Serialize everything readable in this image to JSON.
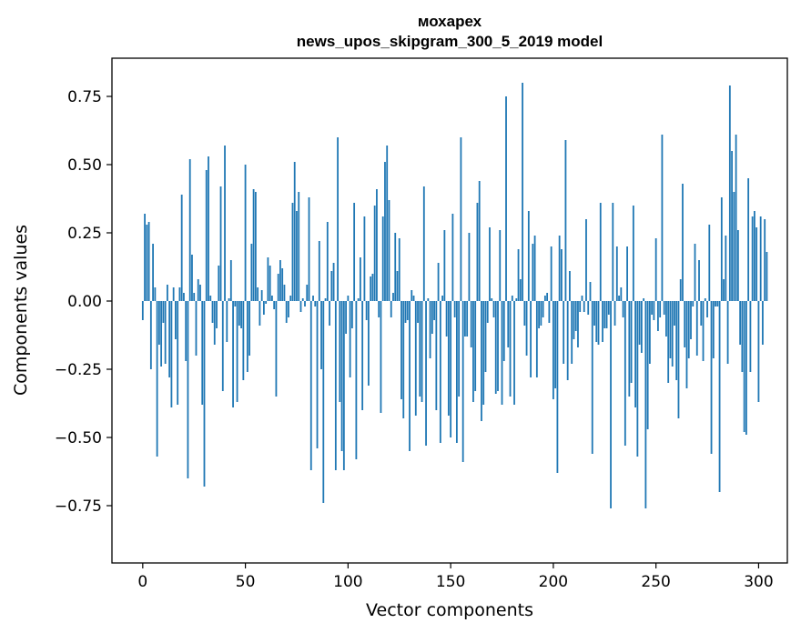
{
  "chart_data": {
    "type": "bar",
    "title_line1": "мохарех",
    "title_line2": "news_upos_skipgram_300_5_2019 model",
    "xlabel": "Vector components",
    "ylabel": "Components values",
    "xlim": [
      -15,
      314
    ],
    "ylim": [
      -0.96,
      0.89
    ],
    "xticks": [
      0,
      50,
      100,
      150,
      200,
      250,
      300
    ],
    "xtick_labels": [
      "0",
      "50",
      "100",
      "150",
      "200",
      "250",
      "300"
    ],
    "yticks": [
      -0.75,
      -0.5,
      -0.25,
      0.0,
      0.25,
      0.5,
      0.75
    ],
    "ytick_labels": [
      "−0.75",
      "−0.50",
      "−0.25",
      "0.00",
      "0.25",
      "0.50",
      "0.75"
    ],
    "bar_color": "#1f77b4",
    "x_start": 0,
    "values": [
      -0.07,
      0.32,
      0.28,
      0.29,
      -0.25,
      0.21,
      0.05,
      -0.57,
      -0.16,
      -0.24,
      -0.08,
      -0.23,
      0.06,
      -0.28,
      -0.39,
      0.05,
      -0.14,
      -0.38,
      0.05,
      0.39,
      0.03,
      -0.22,
      -0.65,
      0.52,
      0.17,
      0.03,
      -0.2,
      0.08,
      0.06,
      -0.38,
      -0.68,
      0.48,
      0.53,
      0.02,
      -0.08,
      -0.16,
      -0.1,
      0.13,
      0.42,
      -0.33,
      0.57,
      -0.15,
      0.01,
      0.15,
      -0.39,
      -0.02,
      -0.37,
      -0.09,
      -0.1,
      -0.29,
      0.5,
      -0.26,
      -0.2,
      0.21,
      0.41,
      0.4,
      0.05,
      -0.09,
      0.04,
      -0.05,
      -0.01,
      0.16,
      0.13,
      0.02,
      -0.03,
      -0.35,
      0.1,
      0.15,
      0.12,
      0.06,
      -0.08,
      -0.06,
      0.02,
      0.36,
      0.51,
      0.33,
      0.4,
      -0.04,
      0.01,
      -0.02,
      0.06,
      0.38,
      -0.62,
      0.02,
      -0.02,
      -0.54,
      0.22,
      -0.25,
      -0.74,
      0.01,
      0.29,
      -0.09,
      0.11,
      0.14,
      -0.62,
      0.6,
      -0.37,
      -0.55,
      -0.62,
      -0.12,
      0.02,
      -0.28,
      -0.1,
      0.36,
      -0.58,
      0.01,
      0.16,
      -0.4,
      0.31,
      -0.07,
      -0.31,
      0.09,
      0.1,
      0.35,
      0.41,
      -0.06,
      -0.41,
      0.31,
      0.51,
      0.57,
      0.37,
      -0.06,
      0.03,
      0.25,
      0.11,
      0.23,
      -0.36,
      -0.43,
      -0.08,
      -0.07,
      -0.55,
      0.04,
      0.02,
      -0.42,
      -0.08,
      -0.35,
      -0.37,
      0.42,
      -0.53,
      0.01,
      -0.21,
      -0.12,
      -0.07,
      -0.4,
      0.14,
      -0.52,
      0.02,
      0.26,
      -0.13,
      -0.42,
      -0.5,
      0.32,
      -0.06,
      -0.52,
      -0.35,
      0.6,
      -0.59,
      -0.13,
      -0.13,
      0.25,
      -0.17,
      -0.37,
      -0.33,
      0.36,
      0.44,
      -0.44,
      -0.38,
      -0.26,
      -0.08,
      0.27,
      0.01,
      -0.06,
      -0.34,
      -0.33,
      0.26,
      -0.38,
      -0.22,
      0.75,
      -0.17,
      -0.35,
      0.02,
      -0.38,
      0.01,
      0.19,
      0.08,
      0.8,
      -0.09,
      -0.2,
      0.33,
      -0.28,
      0.21,
      0.24,
      -0.28,
      -0.1,
      -0.09,
      -0.06,
      0.02,
      0.03,
      -0.08,
      0.2,
      -0.36,
      -0.32,
      -0.63,
      0.24,
      0.19,
      -0.23,
      0.59,
      -0.29,
      0.11,
      -0.23,
      -0.14,
      -0.11,
      -0.17,
      -0.04,
      0.02,
      -0.04,
      0.3,
      -0.05,
      0.07,
      -0.56,
      -0.09,
      -0.15,
      -0.16,
      0.36,
      -0.15,
      -0.1,
      -0.1,
      -0.05,
      -0.76,
      0.36,
      -0.09,
      0.2,
      0.02,
      0.05,
      -0.06,
      -0.53,
      0.2,
      -0.35,
      -0.3,
      0.35,
      -0.39,
      -0.57,
      -0.16,
      -0.19,
      0.01,
      -0.76,
      -0.47,
      -0.23,
      -0.05,
      -0.07,
      0.23,
      -0.11,
      -0.06,
      0.61,
      -0.05,
      -0.13,
      -0.3,
      -0.21,
      -0.24,
      -0.09,
      -0.29,
      -0.43,
      0.08,
      0.43,
      -0.17,
      -0.32,
      -0.21,
      -0.14,
      -0.02,
      0.21,
      -0.2,
      0.15,
      -0.09,
      -0.22,
      0.01,
      -0.06,
      0.28,
      -0.56,
      -0.21,
      -0.02,
      -0.02,
      -0.7,
      0.38,
      0.08,
      0.24,
      -0.23,
      0.79,
      0.55,
      0.4,
      0.61,
      0.26,
      -0.16,
      -0.26,
      -0.48,
      -0.49,
      0.45,
      -0.26,
      0.31,
      0.33,
      0.27,
      -0.37,
      0.31,
      -0.16,
      0.3,
      0.18
    ]
  }
}
